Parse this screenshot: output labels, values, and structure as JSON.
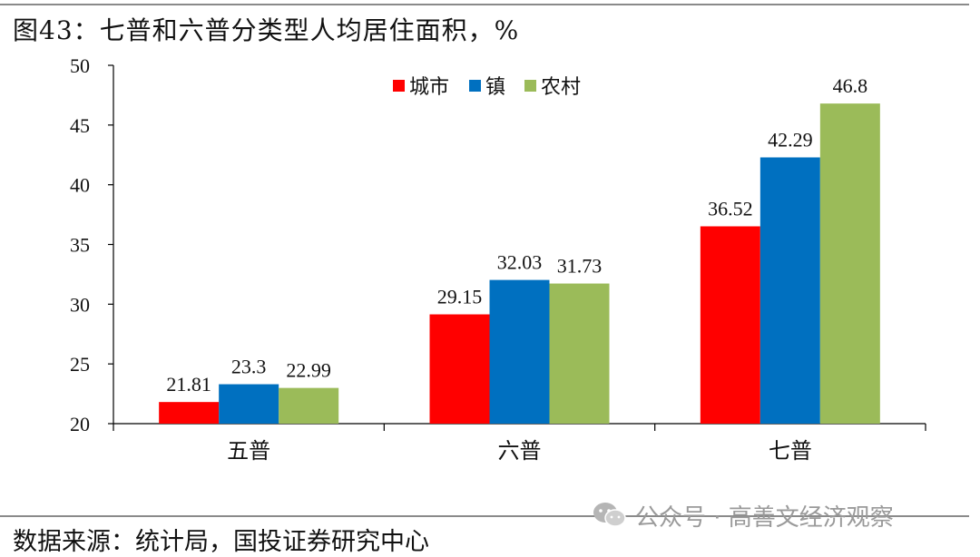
{
  "title": "图43：七普和六普分类型人均居住面积，%",
  "source": "数据来源：统计局，国投证券研究中心",
  "watermark": {
    "text": "公众号 · 高善文经济观察",
    "icon": "wechat-icon"
  },
  "colors": {
    "city": "#ff0000",
    "town": "#0070c0",
    "rural": "#9bbb59"
  },
  "chart_data": {
    "type": "bar",
    "title": "图43：七普和六普分类型人均居住面积，%",
    "categories": [
      "五普",
      "六普",
      "七普"
    ],
    "series": [
      {
        "name": "城市",
        "values": [
          21.81,
          29.15,
          36.52
        ]
      },
      {
        "name": "镇",
        "values": [
          23.3,
          32.03,
          42.29
        ]
      },
      {
        "name": "农村",
        "values": [
          22.99,
          31.73,
          46.8
        ]
      }
    ],
    "ylim": [
      20,
      50
    ],
    "yticks": [
      20,
      25,
      30,
      35,
      40,
      45,
      50
    ],
    "grid": false,
    "legend": "top-center",
    "data_labels": true
  }
}
